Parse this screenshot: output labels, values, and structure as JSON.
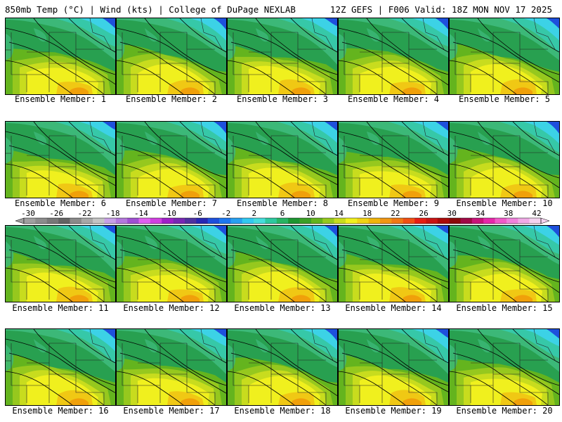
{
  "header": {
    "left": "850mb Temp (°C) | Wind (kts) | College of DuPage NEXLAB",
    "right": "12Z GEFS | F006 Valid: 18Z MON NOV 17 2025"
  },
  "panels": [
    {
      "label": "Ensemble Member: 1"
    },
    {
      "label": "Ensemble Member: 2"
    },
    {
      "label": "Ensemble Member: 3"
    },
    {
      "label": "Ensemble Member: 4"
    },
    {
      "label": "Ensemble Member: 5"
    },
    {
      "label": "Ensemble Member: 6"
    },
    {
      "label": "Ensemble Member: 7"
    },
    {
      "label": "Ensemble Member: 8"
    },
    {
      "label": "Ensemble Member: 9"
    },
    {
      "label": "Ensemble Member: 10"
    },
    {
      "label": "Ensemble Member: 11"
    },
    {
      "label": "Ensemble Member: 12"
    },
    {
      "label": "Ensemble Member: 13"
    },
    {
      "label": "Ensemble Member: 14"
    },
    {
      "label": "Ensemble Member: 15"
    },
    {
      "label": "Ensemble Member: 16"
    },
    {
      "label": "Ensemble Member: 17"
    },
    {
      "label": "Ensemble Member: 18"
    },
    {
      "label": "Ensemble Member: 19"
    },
    {
      "label": "Ensemble Member: 20"
    }
  ],
  "colorbar": {
    "tick_labels": [
      "-30",
      "-26",
      "-22",
      "-18",
      "-14",
      "-10",
      "-6",
      "-2",
      "2",
      "6",
      "10",
      "14",
      "18",
      "22",
      "26",
      "30",
      "34",
      "38",
      "42"
    ],
    "colors": [
      "#a0a0a0",
      "#8c8c8c",
      "#787878",
      "#646464",
      "#8a8a8a",
      "#a8a8a8",
      "#c4c4c4",
      "#c8a0e6",
      "#b478dc",
      "#a050d2",
      "#e060f0",
      "#d040e0",
      "#a020c8",
      "#7828b4",
      "#5032a0",
      "#2828b4",
      "#1e50dc",
      "#1e78f0",
      "#28a0f0",
      "#32c8f0",
      "#46dcdc",
      "#2ec8a0",
      "#28b464",
      "#1e9632",
      "#3ca028",
      "#64b41e",
      "#96c81e",
      "#c8dc1e",
      "#f0f01e",
      "#f0d214",
      "#f0b40a",
      "#f09614",
      "#f07814",
      "#f05014",
      "#e61e14",
      "#c81414",
      "#aa0a0a",
      "#8c0a0a",
      "#a00a46",
      "#c8147a",
      "#e628aa",
      "#f05ac8",
      "#f082dc",
      "#f0aae6",
      "#f5d2f0"
    ]
  }
}
